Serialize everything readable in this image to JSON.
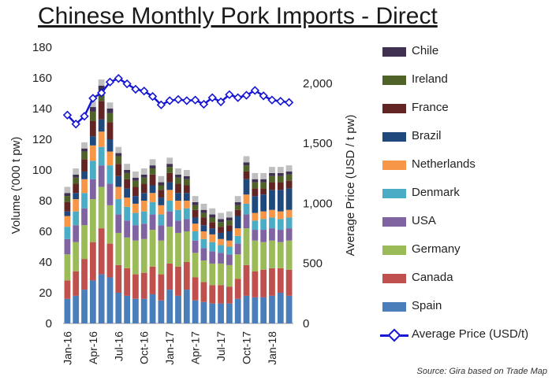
{
  "header": {
    "title": "Chinese Monthly Pork Imports - Direct"
  },
  "source": "Source: Gira based on Trade Map",
  "chart_data": {
    "type": "bar",
    "stacked": true,
    "title": "Chinese Monthly Pork Imports - Direct",
    "ylabel": "Volume ('000 t pw)",
    "y2label": "Average Price (USD / t pw)",
    "ylim": [
      0,
      180
    ],
    "y2lim": [
      0,
      2300
    ],
    "yticks": [
      "0",
      "20",
      "40",
      "60",
      "80",
      "100",
      "120",
      "140",
      "160",
      "180"
    ],
    "y2ticks": [
      "0",
      "500",
      "1,000",
      "1,500",
      "2,000"
    ],
    "xtick_labels": [
      "Jan-16",
      "Apr-16",
      "Jul-16",
      "Oct-16",
      "Jan-17",
      "Apr-17",
      "Jul-17",
      "Oct-17",
      "Jan-18"
    ],
    "categories": [
      "Jan-16",
      "Feb-16",
      "Mar-16",
      "Apr-16",
      "May-16",
      "Jun-16",
      "Jul-16",
      "Aug-16",
      "Sep-16",
      "Oct-16",
      "Nov-16",
      "Dec-16",
      "Jan-17",
      "Feb-17",
      "Mar-17",
      "Apr-17",
      "May-17",
      "Jun-17",
      "Jul-17",
      "Aug-17",
      "Sep-17",
      "Oct-17",
      "Nov-17",
      "Dec-17",
      "Jan-18",
      "Feb-18",
      "Mar-18"
    ],
    "series": [
      {
        "name": "Spain",
        "color": "#4a7ebb",
        "values": [
          16,
          18,
          22,
          28,
          32,
          30,
          20,
          18,
          16,
          16,
          19,
          15,
          22,
          18,
          22,
          15,
          14,
          13,
          13,
          13,
          16,
          18,
          17,
          17,
          18,
          20,
          18
        ]
      },
      {
        "name": "Canada",
        "color": "#c0504d",
        "values": [
          12,
          16,
          20,
          25,
          30,
          22,
          18,
          18,
          16,
          17,
          18,
          17,
          17,
          19,
          18,
          15,
          13,
          12,
          12,
          11,
          13,
          20,
          17,
          18,
          18,
          16,
          17
        ]
      },
      {
        "name": "Germany",
        "color": "#9bbb59",
        "values": [
          17,
          19,
          22,
          28,
          27,
          25,
          21,
          20,
          22,
          22,
          24,
          22,
          24,
          22,
          20,
          16,
          14,
          14,
          14,
          14,
          16,
          24,
          20,
          18,
          18,
          17,
          19
        ]
      },
      {
        "name": "USA",
        "color": "#8064a2",
        "values": [
          10,
          11,
          11,
          13,
          14,
          14,
          12,
          11,
          10,
          10,
          10,
          10,
          10,
          8,
          8,
          8,
          8,
          8,
          7,
          7,
          7,
          9,
          7,
          8,
          8,
          8,
          8
        ]
      },
      {
        "name": "Denmark",
        "color": "#4bacc6",
        "values": [
          8,
          9,
          10,
          12,
          12,
          12,
          10,
          9,
          8,
          8,
          8,
          7,
          7,
          7,
          7,
          6,
          6,
          6,
          5,
          5,
          5,
          7,
          6,
          7,
          7,
          7,
          7
        ]
      },
      {
        "name": "Netherlands",
        "color": "#f79646",
        "values": [
          7,
          8,
          9,
          10,
          10,
          9,
          8,
          6,
          6,
          7,
          6,
          6,
          7,
          6,
          5,
          5,
          5,
          5,
          4,
          4,
          5,
          6,
          5,
          5,
          5,
          5,
          5
        ]
      },
      {
        "name": "Brazil",
        "color": "#1f497d",
        "values": [
          3,
          4,
          5,
          6,
          8,
          8,
          7,
          6,
          5,
          5,
          5,
          5,
          5,
          5,
          5,
          4,
          4,
          4,
          4,
          6,
          8,
          10,
          11,
          11,
          13,
          14,
          14
        ]
      },
      {
        "name": "France",
        "color": "#632523",
        "values": [
          6,
          6,
          8,
          10,
          12,
          11,
          8,
          6,
          6,
          6,
          7,
          5,
          6,
          6,
          5,
          5,
          5,
          4,
          4,
          4,
          4,
          5,
          5,
          4,
          5,
          5,
          5
        ]
      },
      {
        "name": "Ireland",
        "color": "#4f6228",
        "values": [
          4,
          4,
          5,
          6,
          7,
          6,
          5,
          4,
          4,
          4,
          4,
          3,
          4,
          4,
          4,
          3,
          3,
          3,
          3,
          3,
          3,
          4,
          4,
          4,
          4,
          4,
          4
        ]
      },
      {
        "name": "Chile",
        "color": "#403151",
        "values": [
          2,
          2,
          2,
          3,
          3,
          3,
          2,
          2,
          2,
          2,
          2,
          2,
          2,
          2,
          2,
          2,
          2,
          2,
          2,
          2,
          2,
          2,
          2,
          2,
          2,
          2,
          2
        ]
      }
    ],
    "line_series": {
      "name": "Average Price (USD/t)",
      "color": "#1515d4",
      "values": [
        1735,
        1660,
        1725,
        1875,
        1920,
        2010,
        2040,
        1995,
        1950,
        1935,
        1890,
        1820,
        1855,
        1865,
        1855,
        1860,
        1825,
        1880,
        1845,
        1905,
        1880,
        1900,
        1940,
        1895,
        1860,
        1850,
        1840
      ]
    }
  }
}
